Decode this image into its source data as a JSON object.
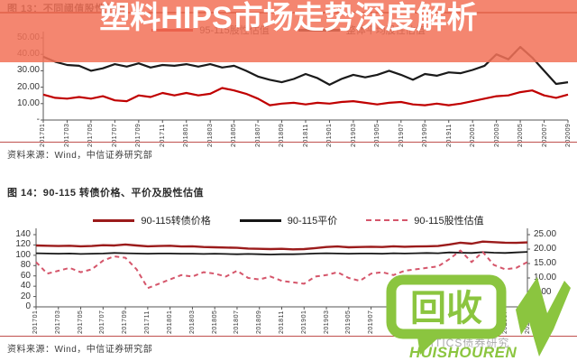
{
  "fig13": {
    "caption": "图 13：不同阈值股性估值",
    "source": "资料来源：Wind，中信证券研究部"
  },
  "fig14": {
    "caption": "图 14：90-115 转债价格、平价及股性估值",
    "source": "资料来源：Wind，中信证券研究部"
  },
  "headline": {
    "title": "塑料HIPS市场走势深度解析"
  },
  "watermark": {
    "logo_text": "回收",
    "logo_subtext": "HUISHOUREN",
    "citics_text": "CITICS债券研究"
  },
  "colors": {
    "banner": "#f2725a",
    "headline_text": "#ffffff",
    "caption_rule": "#9e3a30",
    "source_rule": "#c0504d",
    "logo_green": "#8bc53f",
    "watermark_gray": "#787878",
    "series_red": "#c00000",
    "series_black": "#1a1a1a",
    "series_darkred": "#9b1b1b",
    "series_pink_dashed": "#d5566b"
  },
  "chart_data": [
    {
      "type": "line",
      "title": "图 13：不同阈值股性估值",
      "xlabel": "",
      "ylabel": "",
      "ylim": [
        0,
        50
      ],
      "grid": false,
      "legend_position": "top-center",
      "x_tick_labels": [
        "201701",
        "201703",
        "201705",
        "201707",
        "201709",
        "201711",
        "201801",
        "201803",
        "201805",
        "201807",
        "201809",
        "201811",
        "201901",
        "201903",
        "201905",
        "201907",
        "201909",
        "201911",
        "202001",
        "202003",
        "202005",
        "202007",
        "202009"
      ],
      "y_tick_labels": [
        "50.00",
        "40.00",
        "30.00",
        "20.00",
        "10.00",
        "-"
      ],
      "series": [
        {
          "name": "95-115股性估值",
          "color": "#c00000",
          "stroke_width": 2.2,
          "values": [
            15.5,
            13.5,
            13,
            14,
            13,
            14.5,
            12,
            11.5,
            15,
            14,
            16.5,
            15,
            16.5,
            15,
            16,
            19.5,
            18,
            16,
            13,
            9,
            10,
            10.5,
            9.5,
            10.5,
            10,
            11,
            11.5,
            10.5,
            9.5,
            10.5,
            11,
            9.5,
            9,
            10,
            9,
            10,
            11.5,
            13,
            14.5,
            15,
            17,
            18,
            15,
            13.5,
            15.5
          ]
        },
        {
          "name": "整体平均股性估值",
          "color": "#1a1a1a",
          "stroke_width": 2.2,
          "values": [
            38.5,
            35.5,
            33.5,
            33,
            30,
            31.5,
            34,
            32.5,
            34.5,
            32,
            33.5,
            33,
            34,
            32.5,
            34,
            32,
            33,
            30,
            26.5,
            24.5,
            23,
            25,
            28,
            25.5,
            21.5,
            25,
            27.5,
            26,
            27.5,
            30,
            27.5,
            24.5,
            28,
            27,
            29,
            28.5,
            30.5,
            33,
            40,
            37,
            44.5,
            38,
            30,
            22,
            23
          ]
        }
      ]
    },
    {
      "type": "line",
      "title": "图 14：90-115 转债价格、平价及股性估值",
      "xlabel": "",
      "ylabel": "",
      "ylim": [
        0,
        140
      ],
      "y2lim": [
        0,
        25
      ],
      "grid": false,
      "legend_position": "top-center",
      "x_tick_labels": [
        "201701",
        "201703",
        "201705",
        "201707",
        "201709",
        "201711",
        "201801",
        "201803",
        "201805",
        "201807",
        "201809",
        "201811",
        "201901",
        "201903",
        "201905",
        "201907",
        "201909",
        "201911",
        "202001",
        "202003",
        "202005",
        "202007",
        "202009"
      ],
      "y_tick_labels": [
        "140",
        "120",
        "100",
        "80",
        "60",
        "40",
        "20",
        "0"
      ],
      "y2_tick_labels": [
        "25.00",
        "20.00",
        "15.00",
        "10.00",
        "5.00",
        "-"
      ],
      "series": [
        {
          "name": "90-115转债价格",
          "color": "#9b1b1b",
          "stroke_width": 2.4,
          "values": [
            119,
            118.5,
            118,
            118.5,
            117.5,
            118,
            119.5,
            119,
            121,
            119,
            117.5,
            118,
            118.5,
            117,
            117.5,
            116,
            115.5,
            115,
            114.5,
            113,
            112.5,
            112,
            112.5,
            111.5,
            112,
            114,
            116,
            117,
            115.5,
            116,
            116.5,
            116,
            117.5,
            116.5,
            117,
            117.5,
            118,
            121,
            124.5,
            122.5,
            126.5,
            125.5,
            124.5,
            124,
            125
          ]
        },
        {
          "name": "90-115平价",
          "color": "#161616",
          "stroke_width": 1.8,
          "values": [
            104,
            103.5,
            103,
            103.5,
            102.5,
            103,
            103.5,
            104.5,
            104,
            103.5,
            103,
            103.5,
            103.5,
            103,
            103,
            102.5,
            103,
            102.5,
            102,
            102.5,
            102,
            101.5,
            102,
            102,
            102.5,
            103.5,
            104,
            103.5,
            103,
            103.5,
            103.5,
            103,
            104,
            103.5,
            104,
            104.5,
            104,
            105.5,
            105,
            104.5,
            106,
            105,
            104.5,
            105.5,
            106.5
          ]
        },
        {
          "name": "90-115股性估值",
          "color": "#d5566b",
          "stroke_width": 2,
          "dash": "5,4",
          "axis": "right",
          "values": [
            15.5,
            11.5,
            12.5,
            13.5,
            12,
            13,
            16,
            17.5,
            17,
            13,
            6.5,
            8,
            9.5,
            11,
            10.5,
            12,
            11.5,
            10.5,
            12.5,
            10,
            9.5,
            10.5,
            9,
            8.5,
            8,
            10.5,
            11,
            12,
            10,
            9,
            11.5,
            12,
            11,
            12.5,
            13,
            13.5,
            14,
            16.5,
            19.5,
            15.5,
            19,
            14.5,
            13,
            13.5,
            15.5
          ]
        }
      ]
    }
  ]
}
